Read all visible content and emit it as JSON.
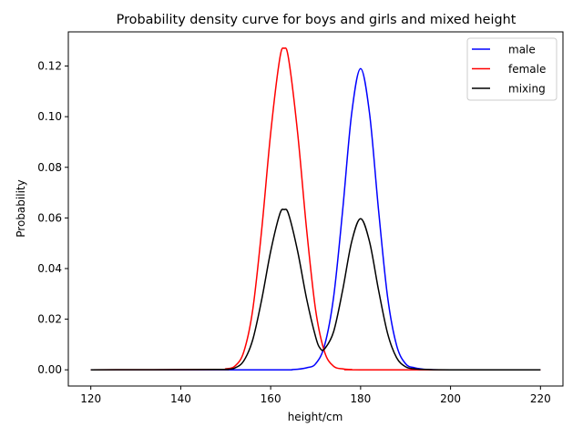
{
  "chart_data": {
    "type": "line",
    "title": "Probability density curve for boys and girls and mixed height",
    "xlabel": "height/cm",
    "ylabel": "Probability",
    "xlim": [
      115,
      225
    ],
    "ylim": [
      -0.0064,
      0.1335
    ],
    "xticks": [
      120,
      140,
      160,
      180,
      200,
      220
    ],
    "yticks": [
      0.0,
      0.02,
      0.04,
      0.06,
      0.08,
      0.1,
      0.12
    ],
    "xtick_labels": [
      "120",
      "140",
      "160",
      "180",
      "200",
      "220"
    ],
    "ytick_labels": [
      "0.00",
      "0.02",
      "0.04",
      "0.06",
      "0.08",
      "0.10",
      "0.12"
    ],
    "grid": false,
    "legend_position": "top-right",
    "series": [
      {
        "name": "male",
        "color": "#0000ff",
        "x": [
          120,
          160,
          165,
          168,
          170,
          172,
          174,
          176,
          178,
          180,
          182,
          184,
          186,
          188,
          190,
          192,
          195,
          200,
          220
        ],
        "y": [
          0,
          0,
          0.0001,
          0.0008,
          0.0024,
          0.0097,
          0.0288,
          0.0629,
          0.1011,
          0.119,
          0.1011,
          0.0629,
          0.0288,
          0.0097,
          0.0024,
          0.0008,
          0.0001,
          0,
          0
        ]
      },
      {
        "name": "female",
        "color": "#ff0000",
        "x": [
          120,
          148,
          150,
          152,
          154,
          156,
          158,
          160,
          162,
          163,
          164,
          166,
          168,
          170,
          172,
          174,
          176,
          178,
          180,
          220
        ],
        "y": [
          0,
          0.0001,
          0.0004,
          0.0014,
          0.007,
          0.0236,
          0.0553,
          0.0935,
          0.1227,
          0.127,
          0.1227,
          0.0935,
          0.0553,
          0.0236,
          0.007,
          0.0014,
          0.0004,
          0.0001,
          0,
          0
        ]
      },
      {
        "name": "mixing",
        "color": "#000000",
        "x": [
          120,
          148,
          150,
          152,
          154,
          156,
          158,
          160,
          162,
          163,
          164,
          166,
          168,
          170,
          171,
          172,
          174,
          176,
          178,
          180,
          182,
          184,
          186,
          188,
          190,
          192,
          195,
          200,
          220
        ],
        "y": [
          0,
          0.0001,
          0.0002,
          0.0007,
          0.0035,
          0.0118,
          0.0277,
          0.0468,
          0.0614,
          0.0633,
          0.0614,
          0.0468,
          0.028,
          0.013,
          0.0085,
          0.0083,
          0.0151,
          0.0314,
          0.0505,
          0.0597,
          0.0505,
          0.0314,
          0.0144,
          0.0048,
          0.0012,
          0.0004,
          0.0001,
          0,
          0
        ]
      }
    ]
  }
}
